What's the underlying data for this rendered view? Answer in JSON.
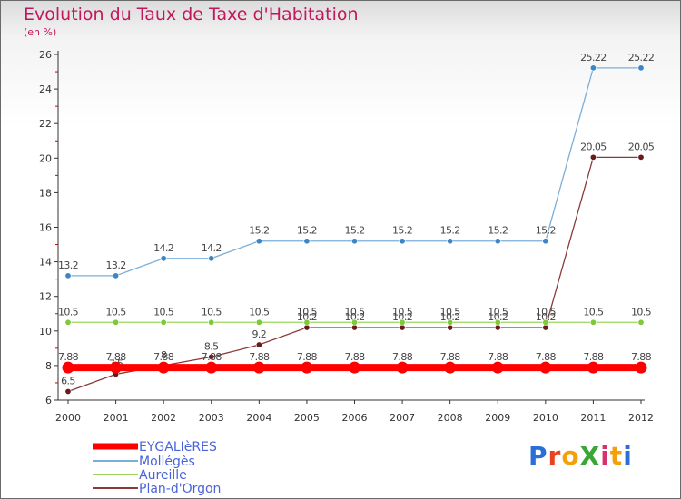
{
  "page": {
    "title": "Evolution du Taux de Taxe d'Habitation",
    "subtitle": "(en %)",
    "logo_text": "ProXiti",
    "logo_colors": [
      "#2b6fd6",
      "#e8431e",
      "#f2a10d",
      "#3aa635",
      "#d6336c",
      "#f2a10d",
      "#2b6fd6"
    ]
  },
  "chart_data": {
    "type": "line",
    "title": "Evolution du Taux de Taxe d'Habitation",
    "ylabel": "(en %)",
    "xlabel": "",
    "x": [
      "2000",
      "2001",
      "2002",
      "2003",
      "2004",
      "2005",
      "2006",
      "2007",
      "2008",
      "2009",
      "2010",
      "2011",
      "2012"
    ],
    "ylim": [
      6,
      26
    ],
    "yticks": [
      6,
      8,
      10,
      12,
      14,
      16,
      18,
      20,
      22,
      24,
      26
    ],
    "grid": false,
    "legend_position": "bottom-left",
    "series": [
      {
        "name": "EYGALIèRES",
        "color": "#ff0000",
        "values": [
          7.88,
          7.88,
          7.88,
          7.88,
          7.88,
          7.88,
          7.88,
          7.88,
          7.88,
          7.88,
          7.88,
          7.88,
          7.88
        ],
        "labels": [
          "7.88",
          "7.88",
          "7.88",
          "7.88",
          "7.88",
          "7.88",
          "7.88",
          "7.88",
          "7.88",
          "7.88",
          "7.88",
          "7.88",
          "7.88"
        ]
      },
      {
        "name": "Mollégès",
        "color": "#7aaed9",
        "marker": "#3d86c6",
        "values": [
          13.2,
          13.2,
          14.2,
          14.2,
          15.2,
          15.2,
          15.2,
          15.2,
          15.2,
          15.2,
          15.2,
          25.22,
          25.22
        ],
        "labels": [
          "13.2",
          "13.2",
          "14.2",
          "14.2",
          "15.2",
          "15.2",
          "15.2",
          "15.2",
          "15.2",
          "15.2",
          "15.2",
          "25.22",
          "25.22"
        ]
      },
      {
        "name": "Aureille",
        "color": "#9ad65c",
        "marker": "#7ec83c",
        "values": [
          10.5,
          10.5,
          10.5,
          10.5,
          10.5,
          10.5,
          10.5,
          10.5,
          10.5,
          10.5,
          10.5,
          10.5,
          10.5
        ],
        "labels": [
          "10.5",
          "10.5",
          "10.5",
          "10.5",
          "10.5",
          "10.5",
          "10.5",
          "10.5",
          "10.5",
          "10.5",
          "10.5",
          "10.5",
          "10.5"
        ]
      },
      {
        "name": "Plan-d'Orgon",
        "color": "#8b3a3a",
        "marker": "#6a1a1a",
        "values": [
          6.5,
          7.5,
          8,
          8.5,
          9.2,
          10.2,
          10.2,
          10.2,
          10.2,
          10.2,
          10.2,
          20.05,
          20.05
        ],
        "labels": [
          "6.5",
          "7.5",
          "8",
          "8.5",
          "9.2",
          "10.2",
          "10.2",
          "10.2",
          "10.2",
          "10.2",
          "10.2",
          "20.05",
          "20.05"
        ]
      }
    ]
  }
}
